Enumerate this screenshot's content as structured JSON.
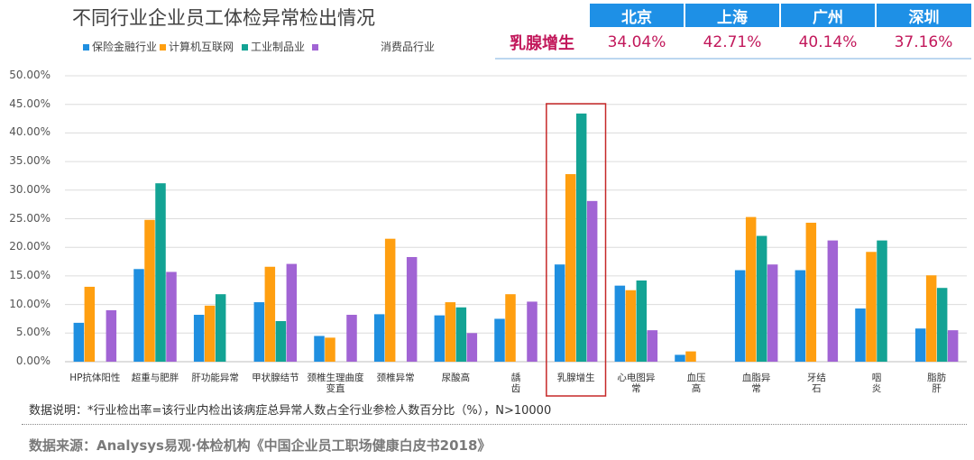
{
  "chart_data": {
    "type": "bar",
    "title": "不同行业企业员工体检异常检出情况",
    "categories": [
      "HP抗体阳性",
      "超重与肥胖",
      "肝功能异常",
      "甲状腺结节",
      "颈椎生理曲度变直",
      "颈椎异常",
      "尿酸高",
      "龋\n齿",
      "乳腺增生",
      "心电图异\n常",
      "血压\n高",
      "血脂异\n常",
      "牙结\n石",
      "咽\n炎",
      "脂肪\n肝"
    ],
    "series": [
      {
        "name": "保险金融行业",
        "color": "#1f8fe0",
        "values": [
          0.068,
          0.162,
          0.082,
          0.104,
          0.045,
          0.083,
          0.081,
          0.075,
          0.17,
          0.133,
          0.012,
          0.16,
          0.16,
          0.093,
          0.058
        ]
      },
      {
        "name": "计算机互联网",
        "color": "#ff9f10",
        "values": [
          0.131,
          0.248,
          0.098,
          0.166,
          0.042,
          0.215,
          0.104,
          0.118,
          0.328,
          0.125,
          0.018,
          0.253,
          0.243,
          0.192,
          0.151
        ]
      },
      {
        "name": "工业制品业",
        "color": "#13a394",
        "values": [
          null,
          0.312,
          0.118,
          0.071,
          null,
          null,
          0.095,
          null,
          0.434,
          0.142,
          null,
          0.22,
          null,
          0.212,
          0.129
        ]
      },
      {
        "name": "消费品行业",
        "color": "#a164d4",
        "values": [
          0.09,
          0.157,
          null,
          0.171,
          0.082,
          0.183,
          0.05,
          0.105,
          0.281,
          0.055,
          null,
          0.17,
          0.212,
          null,
          0.055
        ]
      }
    ],
    "ylim": [
      0,
      0.5
    ],
    "yticks": [
      "50.00%",
      "45.00%",
      "40.00%",
      "35.00%",
      "30.00%",
      "25.00%",
      "20.00%",
      "15.00%",
      "10.00%",
      "5.00%",
      "0.00%"
    ],
    "grid": true,
    "legend_position": "top-left",
    "highlight_category": "乳腺增生"
  },
  "table": {
    "headers": [
      "",
      "北京",
      "上海",
      "广州",
      "深圳"
    ],
    "row_label": "乳腺增生",
    "row_values": [
      "34.04%",
      "42.71%",
      "40.14%",
      "37.16%"
    ]
  },
  "footnote": "数据说明：*行业检出率=该行业内检出该病症总异常人数占全行业参检人数百分比（%），N>10000",
  "source": "数据来源：Analysys易观·体检机构《中国企业员工职场健康白皮书2018》"
}
